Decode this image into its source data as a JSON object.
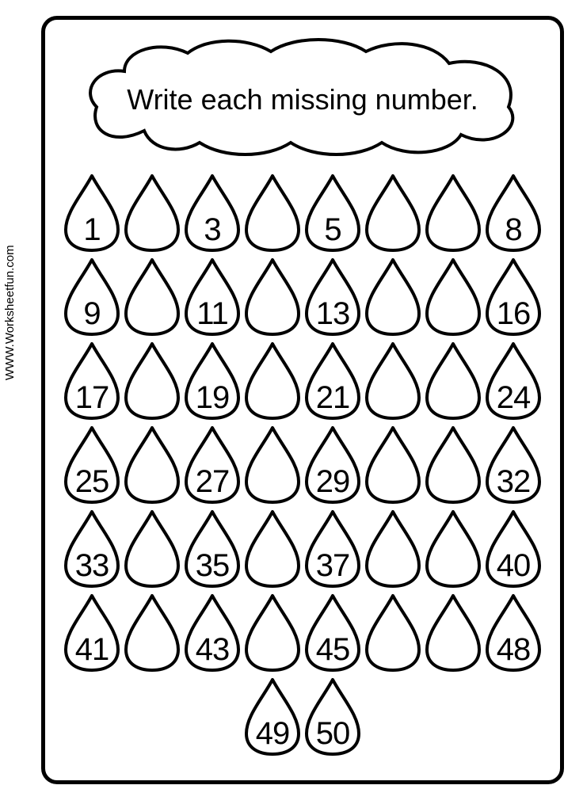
{
  "worksheet": {
    "title": "Write each missing number.",
    "watermark": "WWW.Worksheetfun.com",
    "border_color": "#000000",
    "background_color": "#ffffff",
    "stroke_width": 4,
    "title_fontsize": 36,
    "number_fontsize": 40,
    "rows": [
      [
        "1",
        "",
        "3",
        "",
        "5",
        "",
        "",
        "8"
      ],
      [
        "9",
        "",
        "11",
        "",
        "13",
        "",
        "",
        "16"
      ],
      [
        "17",
        "",
        "19",
        "",
        "21",
        "",
        "",
        "24"
      ],
      [
        "25",
        "",
        "27",
        "",
        "29",
        "",
        "",
        "32"
      ],
      [
        "33",
        "",
        "35",
        "",
        "37",
        "",
        "",
        "40"
      ],
      [
        "41",
        "",
        "43",
        "",
        "45",
        "",
        "",
        "48"
      ],
      [
        "49",
        "50"
      ]
    ]
  }
}
